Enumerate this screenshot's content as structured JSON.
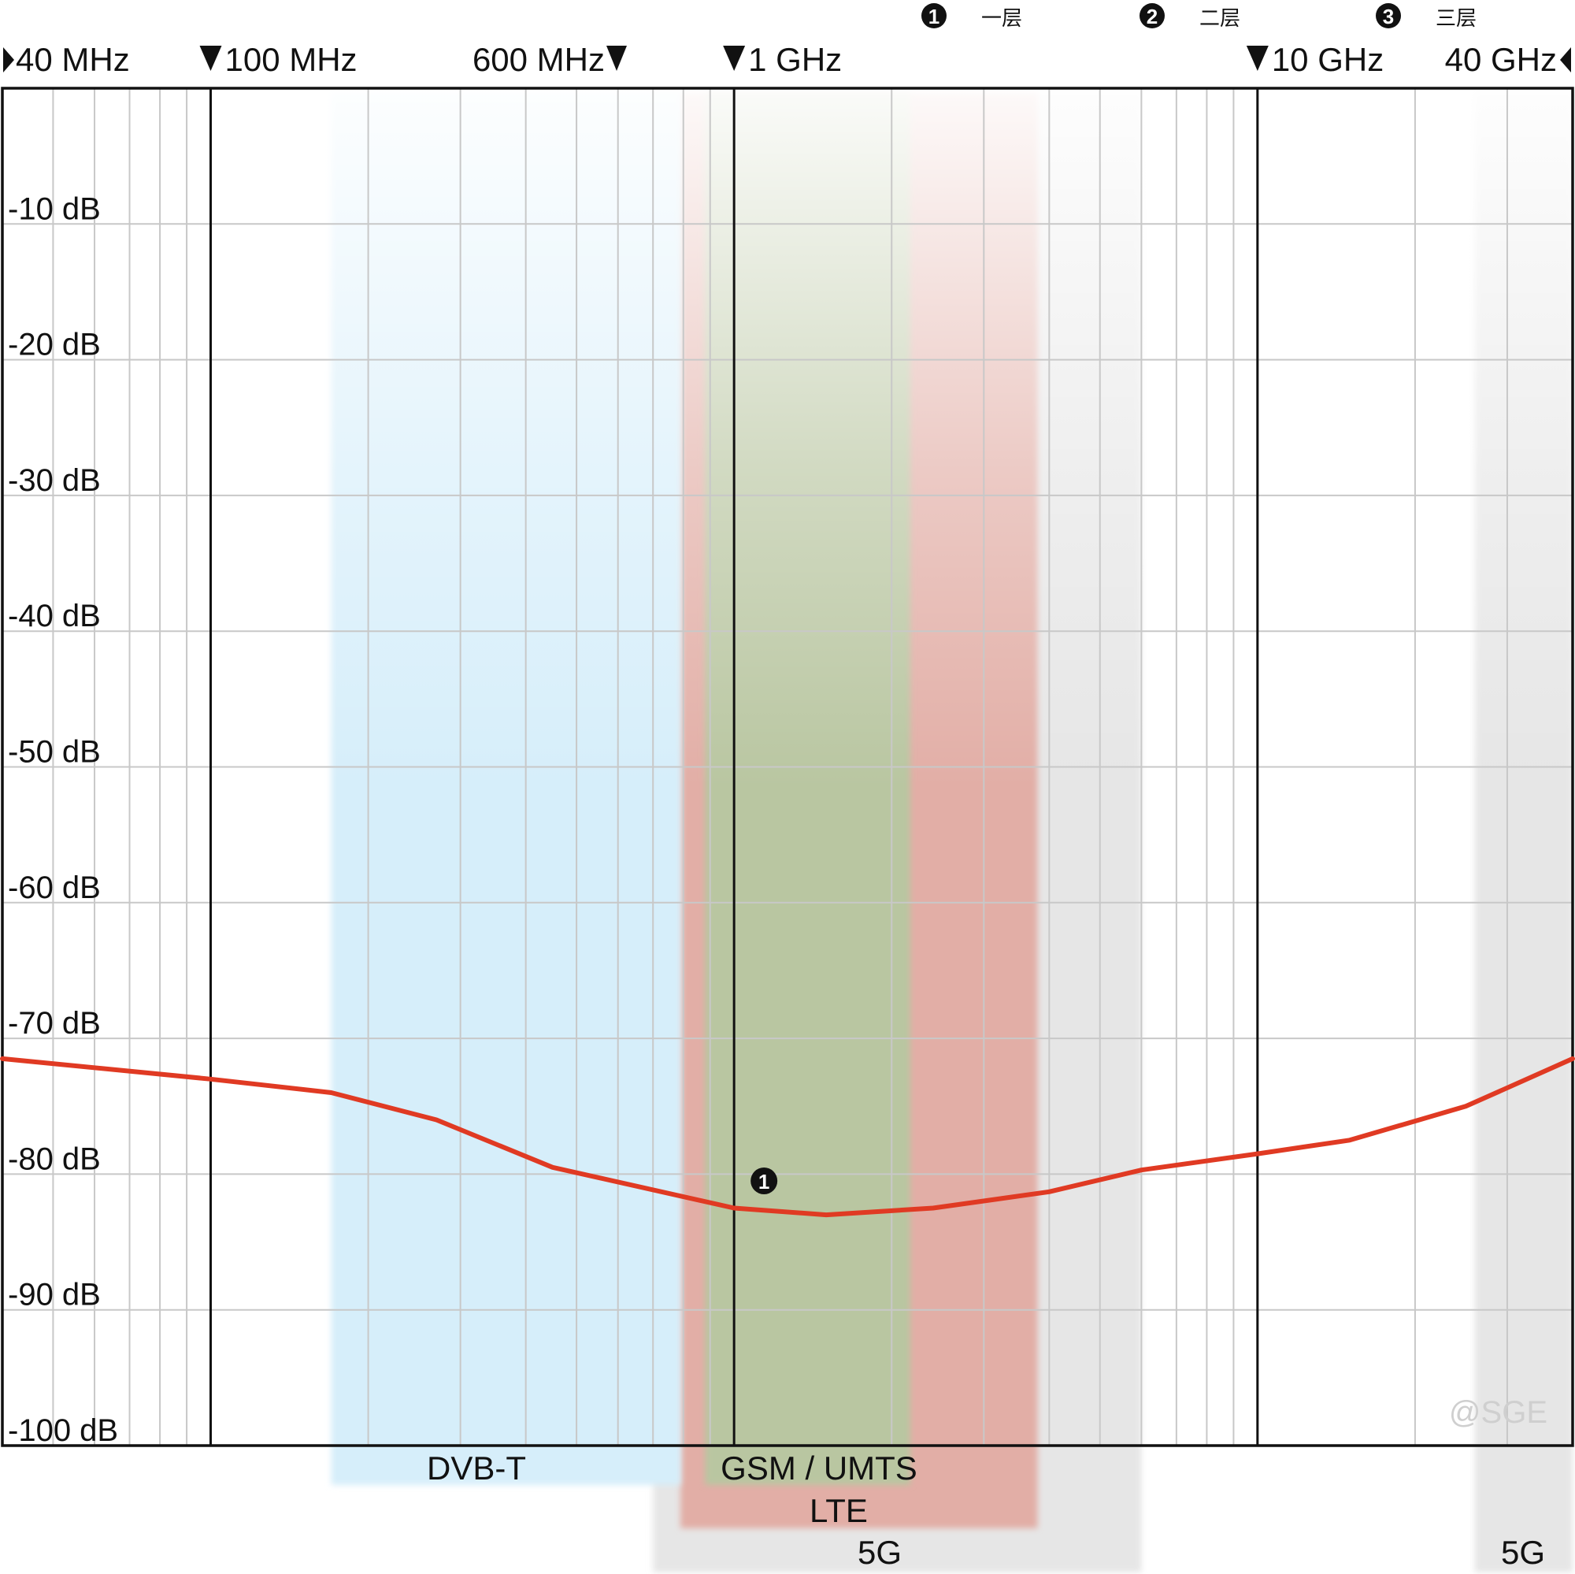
{
  "chart_data": {
    "type": "line",
    "x_scale": "log",
    "x_unit": "MHz",
    "xlim": [
      40,
      40000
    ],
    "ylim": [
      -100,
      0
    ],
    "y_ticks": [
      -10,
      -20,
      -30,
      -40,
      -50,
      -60,
      -70,
      -80,
      -90,
      -100
    ],
    "y_tick_labels": [
      "-10 dB",
      "-20 dB",
      "-30 dB",
      "-40 dB",
      "-50 dB",
      "-60 dB",
      "-70 dB",
      "-80 dB",
      "-90 dB",
      "-100 dB"
    ],
    "x_ticks": [
      {
        "value": 40,
        "label": "40 MHz",
        "marker": "right"
      },
      {
        "value": 100,
        "label": "100 MHz",
        "marker": "down"
      },
      {
        "value": 600,
        "label": "600 MHz",
        "marker": "down"
      },
      {
        "value": 1000,
        "label": "1 GHz",
        "marker": "down"
      },
      {
        "value": 10000,
        "label": "10 GHz",
        "marker": "down"
      },
      {
        "value": 40000,
        "label": "40 GHz",
        "marker": "left"
      }
    ],
    "grid": true,
    "legend": [
      {
        "marker": "1",
        "label": "一层"
      },
      {
        "marker": "2",
        "label": "二层"
      },
      {
        "marker": "3",
        "label": "三层"
      }
    ],
    "series": [
      {
        "marker": "1",
        "color": "#e03a23",
        "x": [
          40,
          100,
          170,
          270,
          450,
          1000,
          1500,
          2400,
          4000,
          6000,
          10000,
          15000,
          25000,
          40000
        ],
        "y": [
          -71.5,
          -73,
          -74,
          -76,
          -79.5,
          -82.5,
          -83,
          -82.5,
          -81.3,
          -79.7,
          -78.5,
          -77.5,
          -75,
          -71.5
        ]
      }
    ],
    "bands": [
      {
        "label": "DVB-T",
        "from": 170,
        "to": 790,
        "color": "#d6eefa",
        "row": 1
      },
      {
        "label": "GSM / UMTS",
        "from": 880,
        "to": 2170,
        "color": "#b9c6a1",
        "row": 1
      },
      {
        "label": "LTE",
        "from": 790,
        "to": 3800,
        "color": "#e2aea6",
        "row": 2
      },
      {
        "label": "5G",
        "from": 700,
        "to": 6000,
        "color": "#e6e6e6",
        "row": 3
      },
      {
        "label": "5G",
        "from": 26000,
        "to": 40000,
        "color": "#e6e6e6",
        "row": 3
      }
    ],
    "annotations": [
      {
        "text": "1",
        "x": 1000,
        "y": -80.5
      }
    ],
    "watermark": "@SGE"
  }
}
